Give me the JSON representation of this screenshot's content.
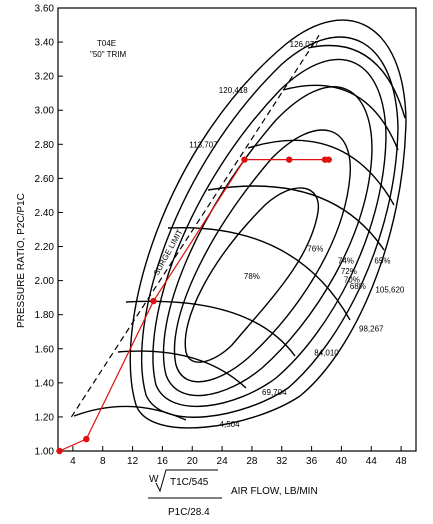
{
  "chart_data": {
    "type": "line",
    "title": "T04E \"50\" TRIM",
    "title_line1": "T04E",
    "title_line2": "\"50\" TRIM",
    "ylabel": "PRESSURE RATIO, P2C/P1C",
    "xlabel": "AIR FLOW, LB/MIN",
    "xlabel_formula": {
      "w": "W",
      "num": "T1C/545",
      "den": "P1C/28.4"
    },
    "xlim": [
      2,
      50
    ],
    "ylim": [
      1.0,
      3.6
    ],
    "xticks": [
      4,
      8,
      12,
      16,
      20,
      24,
      28,
      32,
      36,
      40,
      44,
      48
    ],
    "yticks": [
      "1.00",
      "1.20",
      "1.40",
      "1.60",
      "1.80",
      "2.00",
      "2.20",
      "2.40",
      "2.60",
      "2.80",
      "3.00",
      "3.20",
      "3.40",
      "3.60"
    ],
    "grid": false,
    "surge_limit_label": "SURGE LIMIT",
    "surge_line": [
      [
        3.8,
        1.2
      ],
      [
        37,
        3.44
      ]
    ],
    "speed_labels": [
      {
        "text": "126,077",
        "x": 35,
        "y": 3.37
      },
      {
        "text": "120,418",
        "x": 25.5,
        "y": 3.1
      },
      {
        "text": "113,707",
        "x": 21.5,
        "y": 2.78
      },
      {
        "text": "105,620",
        "x": 46.5,
        "y": 1.93
      },
      {
        "text": "98,267",
        "x": 44,
        "y": 1.7
      },
      {
        "text": "84,010",
        "x": 38,
        "y": 1.56
      },
      {
        "text": "69,704",
        "x": 31,
        "y": 1.33
      },
      {
        "text": "4,504",
        "x": 25,
        "y": 1.14
      }
    ],
    "efficiency_labels": [
      {
        "text": "78%",
        "x": 28,
        "y": 2.01
      },
      {
        "text": "76%",
        "x": 36.5,
        "y": 2.17
      },
      {
        "text": "74%",
        "x": 40.6,
        "y": 2.1
      },
      {
        "text": "72%",
        "x": 41.0,
        "y": 2.04
      },
      {
        "text": "70%",
        "x": 41.4,
        "y": 1.99
      },
      {
        "text": "68%",
        "x": 42.2,
        "y": 1.95
      },
      {
        "text": "65%",
        "x": 45.5,
        "y": 2.1
      }
    ],
    "series": [
      {
        "color": "#e01010",
        "values": [
          [
            2.2,
            1.0
          ],
          [
            5.8,
            1.07
          ],
          [
            14.8,
            1.88
          ],
          [
            27.0,
            2.71
          ],
          [
            33.0,
            2.71
          ],
          [
            37.8,
            2.71
          ],
          [
            38.3,
            2.71
          ]
        ]
      }
    ]
  }
}
